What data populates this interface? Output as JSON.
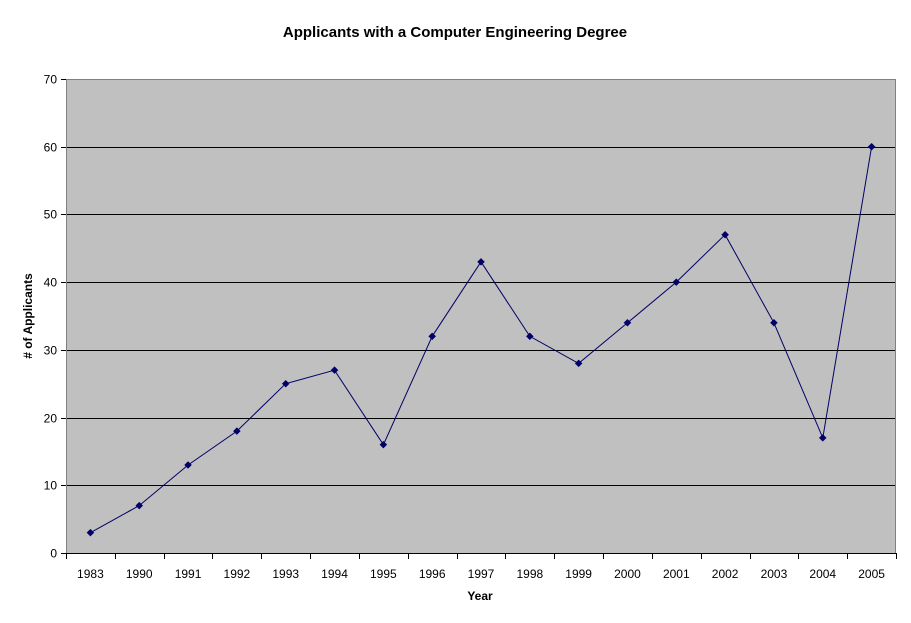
{
  "chart_data": {
    "type": "line",
    "title": "Applicants with a Computer Engineering Degree",
    "xlabel": "Year",
    "ylabel": "# of Applicants",
    "categories": [
      "1983",
      "1990",
      "1991",
      "1992",
      "1993",
      "1994",
      "1995",
      "1996",
      "1997",
      "1998",
      "1999",
      "2000",
      "2001",
      "2002",
      "2003",
      "2004",
      "2005"
    ],
    "series": [
      {
        "values": [
          3,
          7,
          13,
          18,
          25,
          27,
          16,
          32,
          43,
          32,
          28,
          34,
          40,
          47,
          34,
          17,
          60
        ],
        "color": "#000066"
      }
    ],
    "ylim": [
      0,
      70
    ],
    "yticks": [
      "0",
      "10",
      "20",
      "30",
      "40",
      "50",
      "60",
      "70"
    ],
    "grid": true,
    "legend": "none",
    "plot_background": "#c0c0c0",
    "gridline_color": "#000000"
  }
}
